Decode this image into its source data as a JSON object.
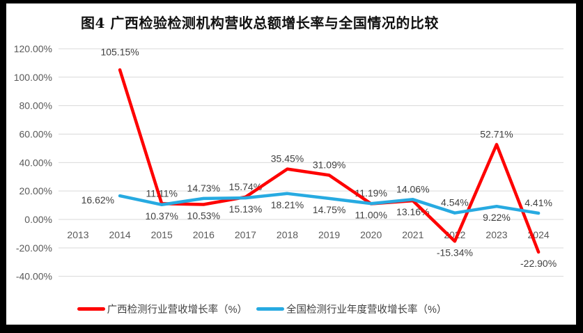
{
  "title": "图4 广西检验检测机构营收总额增长率与全国情况的比较",
  "colors": {
    "background_frame": "#000000",
    "chart_background": "#ffffff",
    "gridline": "#d9d9d9",
    "axis_text": "#595959",
    "data_label_text": "#404040",
    "series_red": "#fe0000",
    "series_blue": "#27aae1"
  },
  "chart_data": {
    "type": "line",
    "title": "图4 广西检验检测机构营收总额增长率与全国情况的比较",
    "categories": [
      "2013",
      "2014",
      "2015",
      "2016",
      "2017",
      "2018",
      "2019",
      "2020",
      "2021",
      "2022",
      "2023",
      "2024"
    ],
    "ylim": [
      -40,
      120
    ],
    "y_step": 20,
    "grid": true,
    "legend_position": "bottom",
    "y_ticks": [
      {
        "value": 120,
        "label": "120.00%"
      },
      {
        "value": 100,
        "label": "100.00%"
      },
      {
        "value": 80,
        "label": "80.00%"
      },
      {
        "value": 60,
        "label": "60.00%"
      },
      {
        "value": 40,
        "label": "40.00%"
      },
      {
        "value": 20,
        "label": "20.00%"
      },
      {
        "value": 0,
        "label": "0.00%"
      },
      {
        "value": -20,
        "label": "-20.00%"
      },
      {
        "value": -40,
        "label": "-40.00%"
      }
    ],
    "series": [
      {
        "id": "guangxi",
        "name": "广西检测行业营收增长率（%）",
        "color": "#fe0000",
        "values": [
          null,
          105.15,
          11.11,
          10.53,
          15.74,
          35.45,
          31.09,
          11.0,
          13.16,
          -15.34,
          52.71,
          -22.9
        ],
        "labels": [
          "",
          "105.15%",
          "11.11%",
          "10.53%",
          "15.74%",
          "35.45%",
          "31.09%",
          "11.00%",
          "13.16%",
          "-15.34%",
          "52.71%",
          "-22.90%"
        ],
        "label_pos": [
          "",
          "above-far",
          "above",
          "below",
          "above",
          "above",
          "above",
          "below",
          "below",
          "below",
          "above",
          "below"
        ]
      },
      {
        "id": "national",
        "name": "全国检测行业年度营收增长率（%）",
        "color": "#27aae1",
        "values": [
          null,
          16.62,
          10.37,
          14.73,
          15.13,
          18.21,
          14.75,
          11.19,
          14.06,
          4.54,
          9.22,
          4.41
        ],
        "labels": [
          "",
          "16.62%",
          "10.37%",
          "14.73%",
          "15.13%",
          "18.21%",
          "14.75%",
          "11.19%",
          "14.06%",
          "4.54%",
          "9.22%",
          "4.41%"
        ],
        "label_pos": [
          "",
          "left",
          "below",
          "above",
          "below",
          "below",
          "below",
          "above",
          "above",
          "above",
          "below",
          "above"
        ]
      }
    ]
  }
}
